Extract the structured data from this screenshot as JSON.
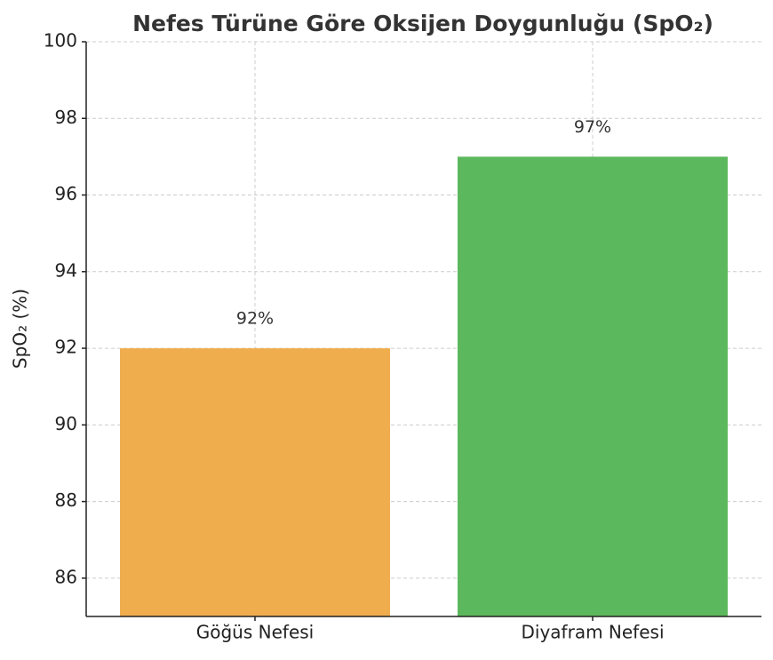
{
  "chart_data": {
    "type": "bar",
    "title": "Nefes Türüne Göre Oksijen Doygunluğu (SpO₂)",
    "y_label": "SpO₂ (%)",
    "categories": [
      "Göğüs Nefesi",
      "Diyafram Nefesi"
    ],
    "values": [
      92,
      97
    ],
    "value_labels": [
      "92%",
      "97%"
    ],
    "colors": [
      "#f0ad4e",
      "#5cb85c"
    ],
    "ylim": [
      85,
      100
    ],
    "yticks": [
      86,
      88,
      90,
      92,
      94,
      96,
      98,
      100
    ],
    "grid": true
  }
}
